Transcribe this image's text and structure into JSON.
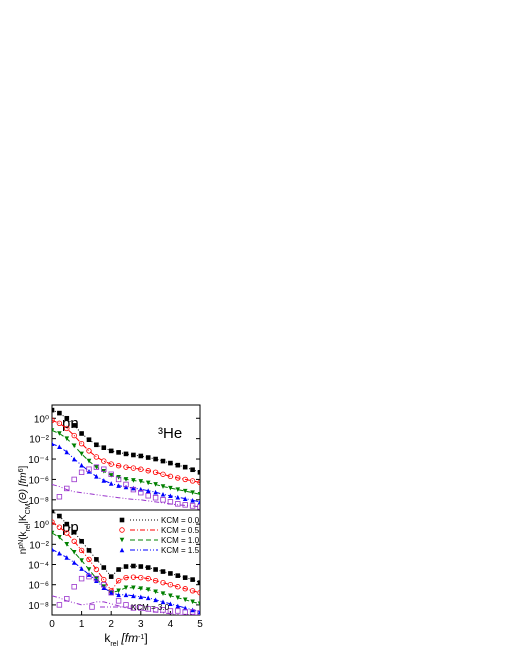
{
  "chart_data": [
    {
      "type": "line",
      "panel_label": "pn",
      "annotation": "³He",
      "ylabel": [
        "n",
        "pN",
        "(k",
        "rel",
        "|K",
        "CM",
        "(Θ) [fm",
        "6",
        "]"
      ],
      "log_y": true,
      "ylim": [
        1e-09,
        20
      ],
      "yticks": [
        {
          "value": 1,
          "label": "10⁰"
        },
        {
          "value": 0.01,
          "label": "10⁻²"
        },
        {
          "value": 0.0001,
          "label": "10⁻⁴"
        },
        {
          "value": 1e-06,
          "label": "10⁻⁶"
        },
        {
          "value": 1e-08,
          "label": "10⁻⁸"
        }
      ],
      "xlim": [
        0,
        5
      ],
      "x": [
        0,
        0.25,
        0.5,
        0.75,
        1,
        1.25,
        1.5,
        1.75,
        2,
        2.25,
        2.5,
        2.75,
        3,
        3.25,
        3.5,
        3.75,
        4,
        4.25,
        4.5,
        4.75,
        5
      ],
      "series": [
        {
          "color": "#000000",
          "marker": "square-filled",
          "dash": "dotted",
          "values": [
            6.3,
            3.2,
            1,
            0.2,
            0.032,
            0.0079,
            0.0025,
            0.0013,
            0.00063,
            0.00045,
            0.00032,
            0.00025,
            0.0002,
            0.00014,
            0.0001,
            6.3e-05,
            4e-05,
            2.5e-05,
            1.6e-05,
            8.9e-06,
            5e-06
          ]
        },
        {
          "color": "#ff0000",
          "marker": "circle-open",
          "dash": "dashdot",
          "values": [
            0.63,
            0.32,
            0.1,
            0.02,
            0.0032,
            0.00063,
            0.00016,
            6.3e-05,
            3.2e-05,
            2.2e-05,
            1.6e-05,
            1.3e-05,
            1e-05,
            7.1e-06,
            5e-06,
            3.2e-06,
            2e-06,
            1.4e-06,
            1e-06,
            7.1e-07,
            5e-07
          ]
        },
        {
          "color": "#008000",
          "marker": "triangle-down-filled",
          "dash": "dashed",
          "values": [
            0.063,
            0.032,
            0.01,
            0.002,
            0.00032,
            6.3e-05,
            1.6e-05,
            6.3e-06,
            2.5e-06,
            1.6e-06,
            1e-06,
            7.9e-07,
            6.3e-07,
            4.5e-07,
            3.2e-07,
            2e-07,
            1.4e-07,
            1e-07,
            7.1e-08,
            5e-08,
            3.5e-08
          ]
        },
        {
          "color": "#0000ff",
          "marker": "triangle-up-filled",
          "dash": "dashdotdot",
          "values": [
            0.0032,
            0.0016,
            0.0005,
            0.0001,
            2.5e-05,
            6.3e-06,
            2e-06,
            7.9e-07,
            4e-07,
            2.5e-07,
            1.8e-07,
            1.4e-07,
            1.1e-07,
            7.9e-08,
            5.6e-08,
            3.5e-08,
            2.5e-08,
            1.8e-08,
            1.3e-08,
            8.9e-09,
            6.3e-09
          ]
        },
        {
          "color": "#9933cc",
          "marker": "square-open",
          "dash": "dashdotdot",
          "values": [
            null,
            2e-08,
            1.3e-07,
            1e-06,
            5e-06,
            1e-05,
            1.6e-05,
            1e-05,
            3.2e-06,
            1e-06,
            3.2e-07,
            1e-07,
            5e-08,
            2.5e-08,
            1.6e-08,
            1e-08,
            6.3e-09,
            4e-09,
            3.2e-09,
            2.5e-09,
            2e-09
          ],
          "line_values": [
            3.2e-07,
            2e-07,
            1e-07,
            6.3e-08,
            5e-08,
            4e-08,
            3.2e-08,
            2.5e-08,
            2e-08,
            1.6e-08,
            1.3e-08,
            1.1e-08,
            1e-08,
            7.9e-09,
            6.3e-09,
            5e-09,
            4e-09,
            3.2e-09,
            2.8e-09,
            2.5e-09,
            2e-09
          ]
        }
      ]
    },
    {
      "type": "line",
      "panel_label": "pp",
      "xlabel": [
        "k",
        "rel",
        " [fm",
        "-1",
        "]"
      ],
      "log_y": true,
      "ylim": [
        1e-09,
        25
      ],
      "yticks": [
        {
          "value": 1,
          "label": "10⁰"
        },
        {
          "value": 0.01,
          "label": "10⁻²"
        },
        {
          "value": 0.0001,
          "label": "10⁻⁴"
        },
        {
          "value": 1e-06,
          "label": "10⁻⁶"
        },
        {
          "value": 1e-08,
          "label": "10⁻⁸"
        }
      ],
      "xlim": [
        0,
        5
      ],
      "xticks": [
        0,
        1,
        2,
        3,
        4,
        5
      ],
      "legend": "upper right",
      "x": [
        0,
        0.25,
        0.5,
        0.75,
        1,
        1.25,
        1.5,
        1.75,
        2,
        2.25,
        2.5,
        2.75,
        3,
        3.25,
        3.5,
        3.75,
        4,
        4.25,
        4.5,
        4.75,
        5
      ],
      "series": [
        {
          "name": "KCM = 0.0",
          "color": "#000000",
          "marker": "square-filled",
          "dash": "dotted",
          "values": [
            20,
            6.3,
            1,
            0.16,
            0.02,
            0.0025,
            0.00032,
            5e-05,
            6.3e-06,
            3.2e-05,
            6.3e-05,
            7.1e-05,
            6.3e-05,
            5e-05,
            3.2e-05,
            2e-05,
            1.3e-05,
            7.9e-06,
            5e-06,
            3.2e-06,
            1.6e-06
          ]
        },
        {
          "name": "KCM = 0.5",
          "color": "#ff0000",
          "marker": "circle-open",
          "dash": "dashdot",
          "values": [
            1.6,
            0.5,
            0.13,
            0.02,
            0.0025,
            0.00032,
            3.2e-05,
            3.2e-06,
            2.5e-07,
            2.5e-06,
            5e-06,
            5.6e-06,
            5e-06,
            4e-06,
            2.5e-06,
            1.6e-06,
            1e-06,
            6.3e-07,
            4e-07,
            2.5e-07,
            1.6e-07
          ]
        },
        {
          "name": "KCM = 1.0",
          "color": "#008000",
          "marker": "triangle-down-filled",
          "dash": "dashed",
          "values": [
            0.13,
            0.05,
            0.01,
            0.0016,
            0.00025,
            3.2e-05,
            4e-06,
            6.3e-07,
            1.6e-07,
            2.5e-07,
            5e-07,
            5e-07,
            4e-07,
            3.2e-07,
            2e-07,
            1.3e-07,
            7.9e-08,
            5e-08,
            3.2e-08,
            2e-08,
            1.3e-08
          ]
        },
        {
          "name": "KCM = 1.5",
          "color": "#0000ff",
          "marker": "triangle-up-filled",
          "dash": "dashdotdot",
          "values": [
            0.0032,
            0.0013,
            0.0005,
            0.00016,
            4e-05,
            1e-05,
            2.5e-06,
            5e-07,
            1.6e-07,
            1e-07,
            1e-07,
            7.9e-08,
            6.3e-08,
            5e-08,
            3.2e-08,
            2e-08,
            1.3e-08,
            7.9e-09,
            5e-09,
            3.2e-09,
            2e-09
          ]
        },
        {
          "name": "KCM = 3.0",
          "color": "#9933cc",
          "marker": "square-open",
          "dash": "dashdotdot",
          "values": [
            null,
            1e-08,
            4e-08,
            6.3e-07,
            4e-06,
            6.3e-06,
            4e-06,
            1e-06,
            1.6e-07,
            2.5e-08,
            1e-08,
            5e-09,
            5e-09,
            4e-09,
            3.2e-09,
            3.2e-09,
            2.5e-09,
            2.5e-09,
            2e-09,
            2e-09,
            1.6e-09
          ],
          "line_values": [
            7.9e-08,
            5e-08,
            2.5e-08,
            1.6e-08,
            1e-08,
            1.3e-08,
            2e-08,
            2e-08,
            1.3e-08,
            7.9e-09,
            5e-09,
            4e-09,
            3.2e-09,
            2.5e-09,
            2e-09,
            1.6e-09,
            1.3e-09,
            1e-09,
            1e-09,
            1e-09,
            1e-09
          ]
        }
      ]
    }
  ]
}
